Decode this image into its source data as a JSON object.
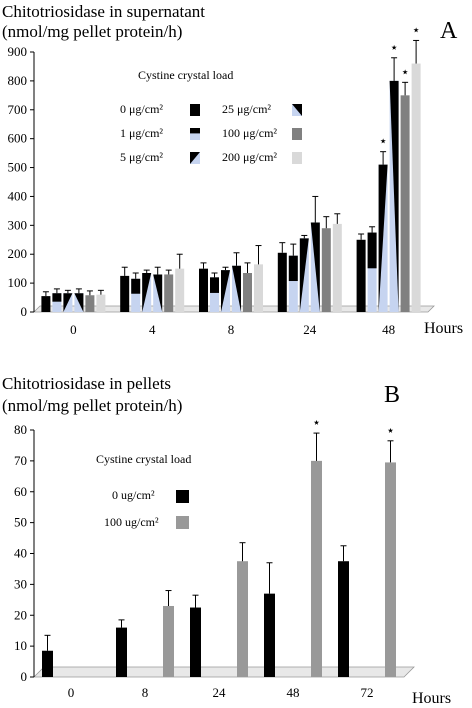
{
  "chart_data": [
    {
      "type": "bar",
      "panel": "A",
      "title_line1": "Chitotriosidase in supernatant",
      "title_line2": "(nmol/mg pellet protein/h)",
      "xlabel": "Hours",
      "ylabel": "",
      "ylim": [
        0,
        900
      ],
      "yticks": [
        "0",
        "100",
        "200",
        "300",
        "400",
        "500",
        "600",
        "700",
        "800",
        "900"
      ],
      "categories": [
        "0",
        "4",
        "8",
        "24",
        "48"
      ],
      "legend_title": "Cystine crystal load",
      "legend_placement": "top-center",
      "grid": false,
      "series": [
        {
          "name": "0   μg/cm²",
          "color": "#000000",
          "pattern": "solid",
          "values": [
            55,
            125,
            150,
            205,
            250
          ],
          "errors": [
            15,
            30,
            20,
            35,
            20
          ]
        },
        {
          "name": "1   μg/cm²",
          "color": "#c6d4f0",
          "pattern": "split",
          "values": [
            65,
            115,
            120,
            195,
            275
          ],
          "errors": [
            15,
            20,
            15,
            40,
            20
          ]
        },
        {
          "name": "5   μg/cm²",
          "color": "#c6d4f0",
          "pattern": "diag",
          "values": [
            65,
            135,
            145,
            255,
            510
          ],
          "errors": [
            10,
            10,
            10,
            10,
            45
          ]
        },
        {
          "name": "25   μg/cm²",
          "color": "#c6d4f0",
          "pattern": "diag2",
          "values": [
            65,
            130,
            160,
            310,
            800
          ],
          "errors": [
            15,
            25,
            45,
            90,
            80
          ]
        },
        {
          "name": "100 μg/cm²",
          "color": "#808080",
          "pattern": "solid",
          "values": [
            58,
            130,
            135,
            290,
            750
          ],
          "errors": [
            15,
            15,
            35,
            40,
            45
          ]
        },
        {
          "name": "200 μg/cm²",
          "color": "#d9d9d9",
          "pattern": "solid",
          "values": [
            60,
            150,
            165,
            305,
            860
          ],
          "errors": [
            15,
            50,
            65,
            35,
            80
          ]
        }
      ],
      "significance_marks": [
        {
          "category": "48",
          "series": "5   μg/cm²",
          "symbol": "⋆"
        },
        {
          "category": "48",
          "series": "25   μg/cm²",
          "symbol": "⋆"
        },
        {
          "category": "48",
          "series": "100 μg/cm²",
          "symbol": "⋆"
        },
        {
          "category": "48",
          "series": "200 μg/cm²",
          "symbol": "⋆"
        }
      ]
    },
    {
      "type": "bar",
      "panel": "B",
      "title_line1": "Chitotriosidase in pellets",
      "title_line2": "(nmol/mg pellet protein/h)",
      "xlabel": "Hours",
      "ylabel": "",
      "ylim": [
        0,
        80
      ],
      "yticks": [
        "0",
        "10",
        "20",
        "30",
        "40",
        "50",
        "60",
        "70",
        "80"
      ],
      "categories": [
        "0",
        "8",
        "24",
        "48",
        "72"
      ],
      "legend_title": "Cystine crystal load",
      "legend_placement": "top-left",
      "grid": false,
      "series": [
        {
          "name": "0     ug/cm²",
          "color": "#000000",
          "values": [
            8.5,
            16,
            22.5,
            27,
            37.5
          ],
          "errors": [
            5,
            2.5,
            4,
            10,
            5
          ]
        },
        {
          "name": "100 ug/cm²",
          "color": "#999999",
          "values": [
            null,
            23,
            37.5,
            70,
            69.5
          ],
          "errors": [
            null,
            5,
            6,
            9,
            7
          ]
        }
      ],
      "significance_marks": [
        {
          "category": "48",
          "series": "100 ug/cm²",
          "symbol": "⋆"
        },
        {
          "category": "72",
          "series": "100 ug/cm²",
          "symbol": "⋆"
        }
      ]
    }
  ]
}
